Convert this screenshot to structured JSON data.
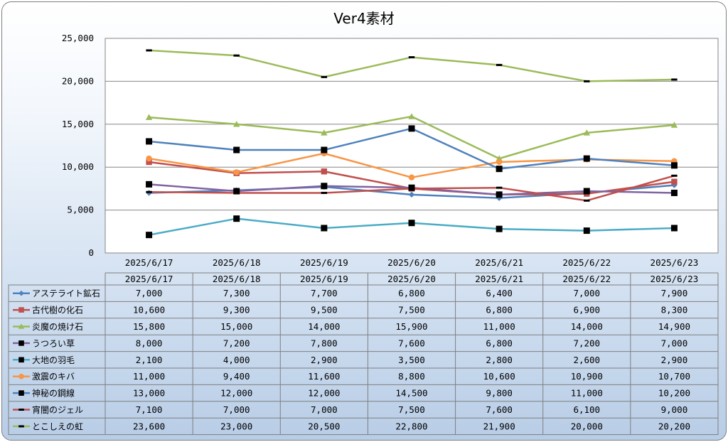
{
  "chart_data": {
    "type": "line",
    "title": "Ver4素材",
    "xlabel": "",
    "ylabel": "",
    "ylim": [
      0,
      25000
    ],
    "yticks": [
      0,
      5000,
      10000,
      15000,
      20000,
      25000
    ],
    "ytick_labels": [
      "0",
      "5,000",
      "10,000",
      "15,000",
      "20,000",
      "25,000"
    ],
    "grid": true,
    "legend_placement": "data-table",
    "categories": [
      "2025/6/17",
      "2025/6/18",
      "2025/6/19",
      "2025/6/20",
      "2025/6/21",
      "2025/6/22",
      "2025/6/23"
    ],
    "series": [
      {
        "name": "アステライト鉱石",
        "color": "#4f81bd",
        "marker": "diamond",
        "values": [
          7000,
          7300,
          7700,
          6800,
          6400,
          7000,
          7900
        ],
        "labels": [
          "7,000",
          "7,300",
          "7,700",
          "6,800",
          "6,400",
          "7,000",
          "7,900"
        ]
      },
      {
        "name": "古代樹の化石",
        "color": "#c0504d",
        "marker": "square",
        "values": [
          10600,
          9300,
          9500,
          7500,
          6800,
          6900,
          8300
        ],
        "labels": [
          "10,600",
          "9,300",
          "9,500",
          "7,500",
          "6,800",
          "6,900",
          "8,300"
        ]
      },
      {
        "name": "炎魔の焼け石",
        "color": "#9bbb59",
        "marker": "triangle",
        "values": [
          15800,
          15000,
          14000,
          15900,
          11000,
          14000,
          14900
        ],
        "labels": [
          "15,800",
          "15,000",
          "14,000",
          "15,900",
          "11,000",
          "14,000",
          "14,900"
        ]
      },
      {
        "name": "うつろい草",
        "color": "#8064a2",
        "marker": "square-black",
        "values": [
          8000,
          7200,
          7800,
          7600,
          6800,
          7200,
          7000
        ],
        "labels": [
          "8,000",
          "7,200",
          "7,800",
          "7,600",
          "6,800",
          "7,200",
          "7,000"
        ]
      },
      {
        "name": "大地の羽毛",
        "color": "#4bacc6",
        "marker": "square-black",
        "values": [
          2100,
          4000,
          2900,
          3500,
          2800,
          2600,
          2900
        ],
        "labels": [
          "2,100",
          "4,000",
          "2,900",
          "3,500",
          "2,800",
          "2,600",
          "2,900"
        ]
      },
      {
        "name": "激震のキバ",
        "color": "#f79646",
        "marker": "circle",
        "values": [
          11000,
          9400,
          11600,
          8800,
          10600,
          10900,
          10700
        ],
        "labels": [
          "11,000",
          "9,400",
          "11,600",
          "8,800",
          "10,600",
          "10,900",
          "10,700"
        ]
      },
      {
        "name": "神秘の鋼線",
        "color": "#4f81bd",
        "marker": "square-black",
        "values": [
          13000,
          12000,
          12000,
          14500,
          9800,
          11000,
          10200
        ],
        "labels": [
          "13,000",
          "12,000",
          "12,000",
          "14,500",
          "9,800",
          "11,000",
          "10,200"
        ]
      },
      {
        "name": "宵闇のジェル",
        "color": "#c0504d",
        "marker": "dash",
        "values": [
          7100,
          7000,
          7000,
          7500,
          7600,
          6100,
          9000
        ],
        "labels": [
          "7,100",
          "7,000",
          "7,000",
          "7,500",
          "7,600",
          "6,100",
          "9,000"
        ]
      },
      {
        "name": "とこしえの虹",
        "color": "#9bbb59",
        "marker": "dash",
        "values": [
          23600,
          23000,
          20500,
          22800,
          21900,
          20000,
          20200
        ],
        "labels": [
          "23,600",
          "23,000",
          "20,500",
          "22,800",
          "21,900",
          "20,000",
          "20,200"
        ]
      }
    ]
  }
}
